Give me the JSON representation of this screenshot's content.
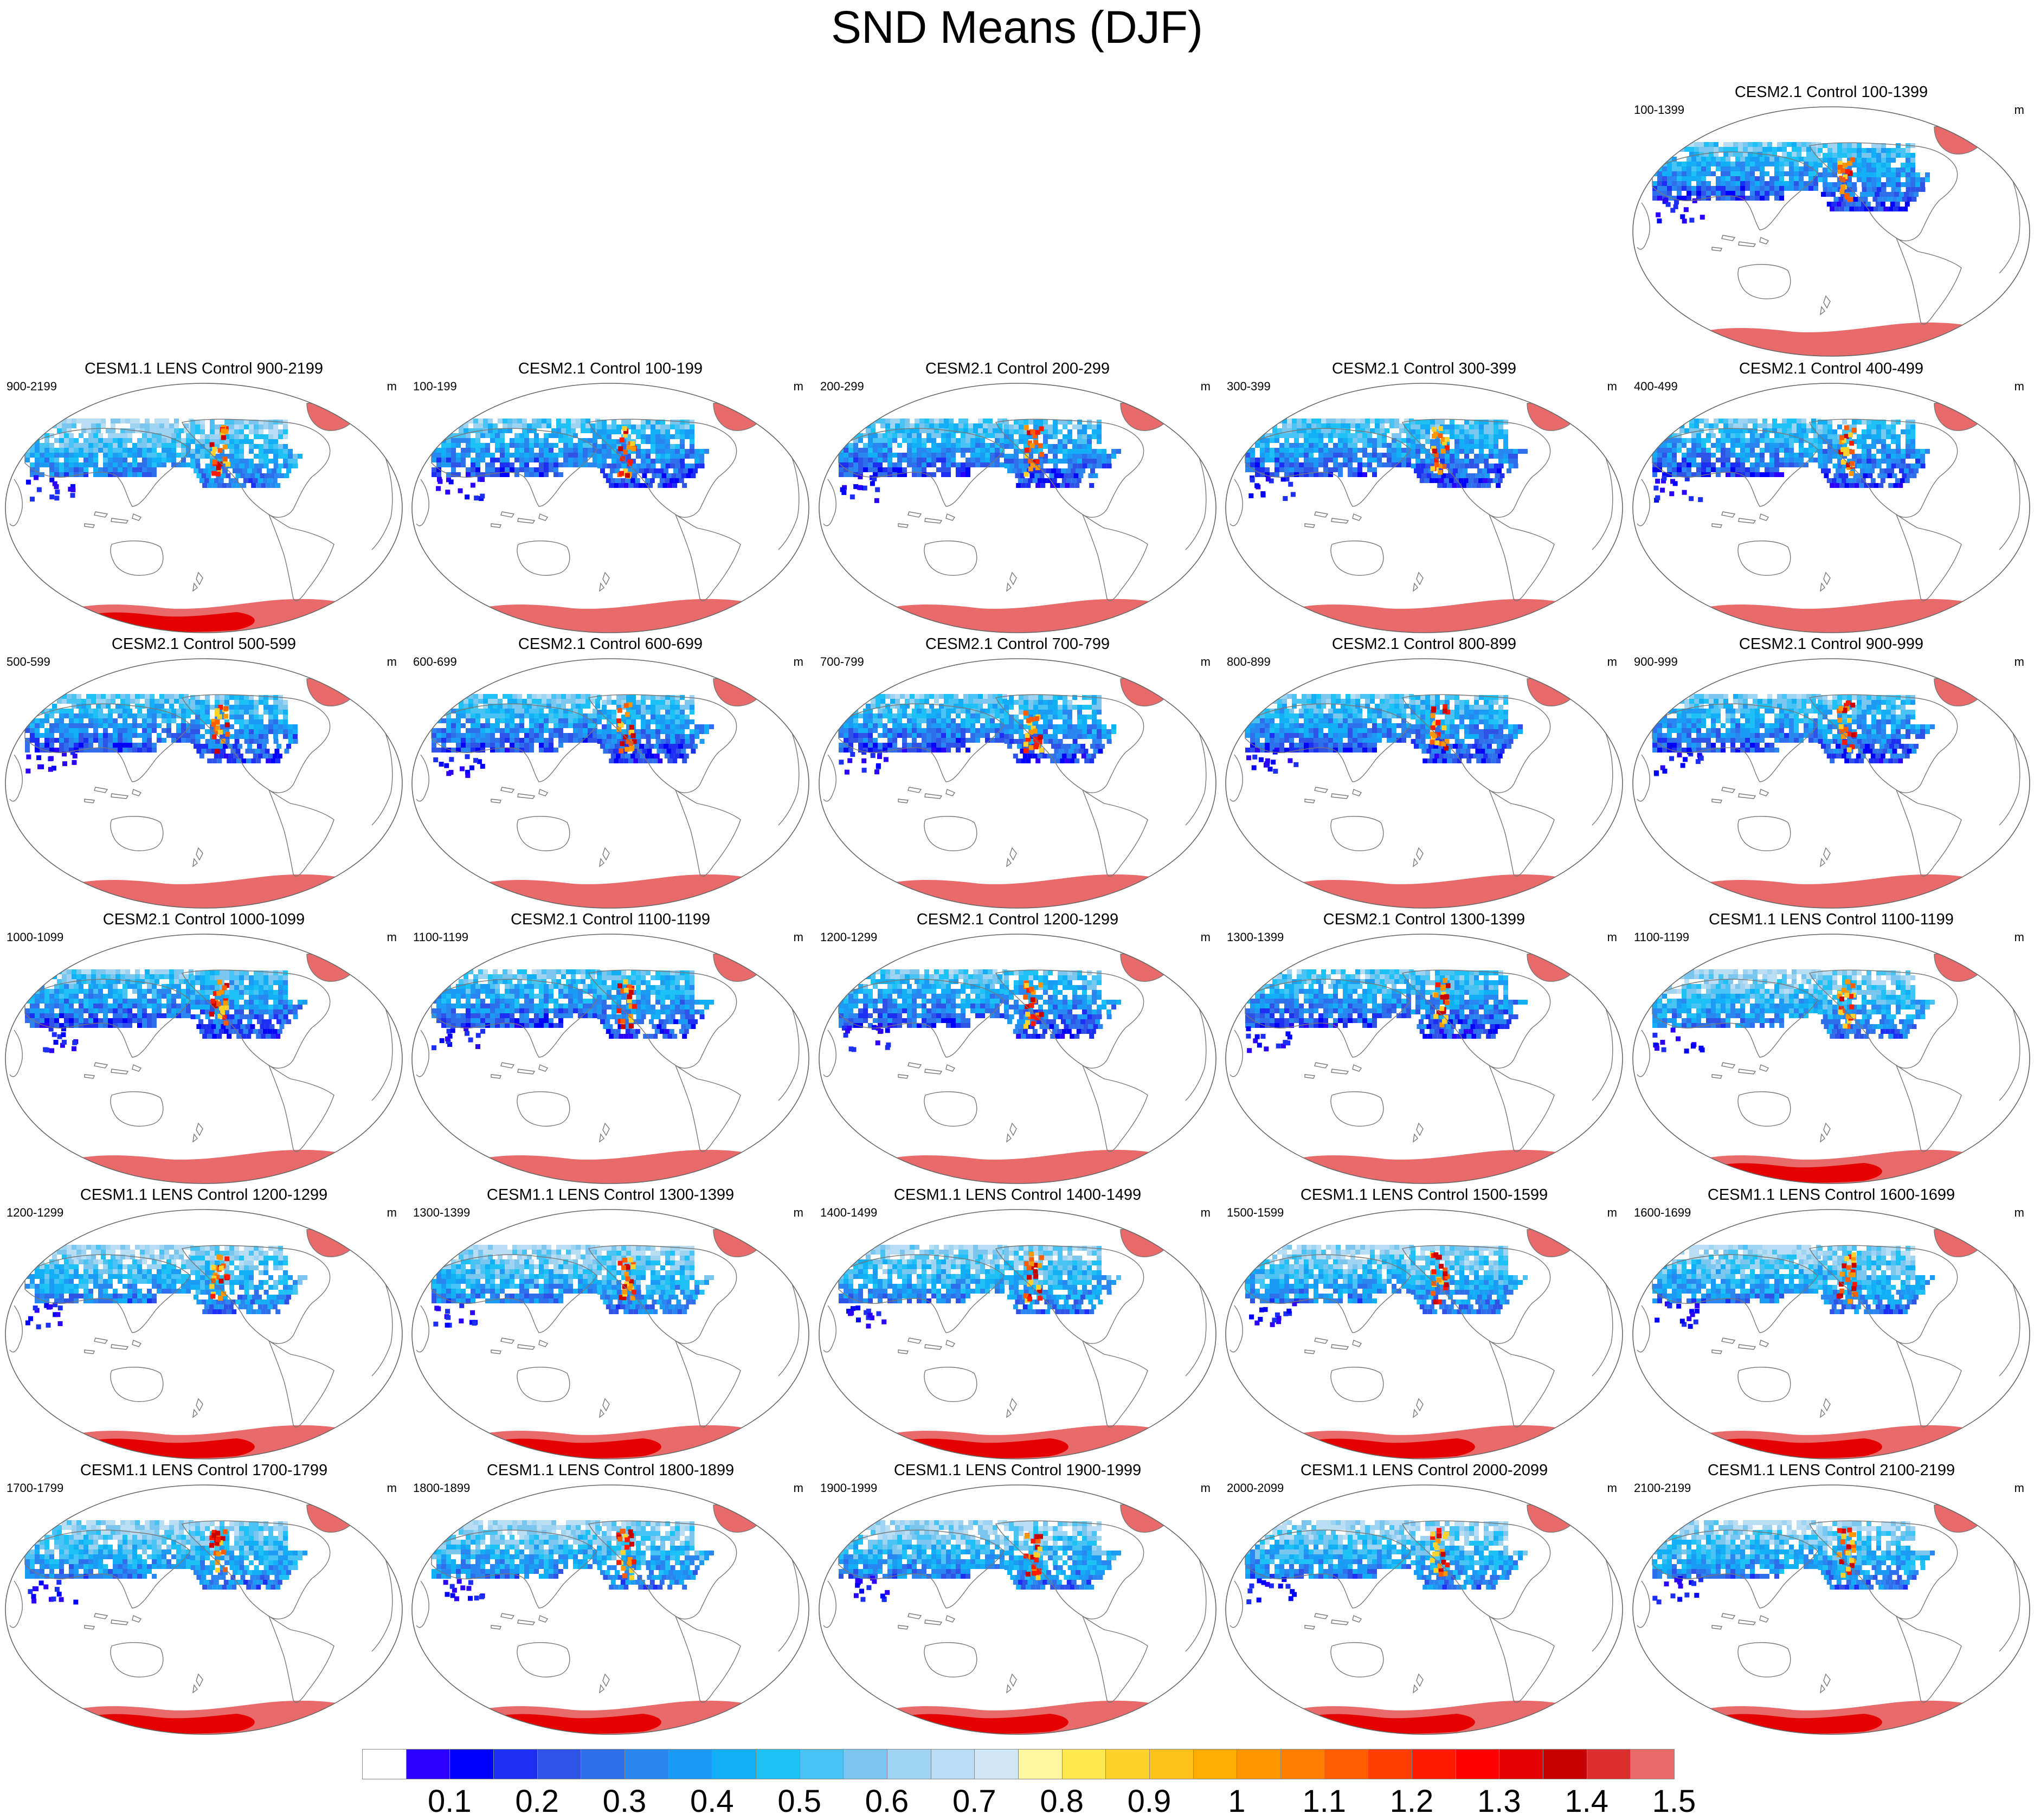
{
  "title": "SND Means (DJF)",
  "units": "m",
  "panels": [
    {
      "title": "CESM2.1 Control 100-1399",
      "range": "100-1399",
      "snow": "cesm2"
    },
    {
      "title": "CESM1.1 LENS Control 900-2199",
      "range": "900-2199",
      "snow": "lens"
    },
    {
      "title": "CESM2.1 Control 100-199",
      "range": "100-199",
      "snow": "cesm2"
    },
    {
      "title": "CESM2.1 Control 200-299",
      "range": "200-299",
      "snow": "cesm2"
    },
    {
      "title": "CESM2.1 Control 300-399",
      "range": "300-399",
      "snow": "cesm2"
    },
    {
      "title": "CESM2.1 Control 400-499",
      "range": "400-499",
      "snow": "cesm2"
    },
    {
      "title": "CESM2.1 Control 500-599",
      "range": "500-599",
      "snow": "cesm2"
    },
    {
      "title": "CESM2.1 Control 600-699",
      "range": "600-699",
      "snow": "cesm2"
    },
    {
      "title": "CESM2.1 Control 700-799",
      "range": "700-799",
      "snow": "cesm2"
    },
    {
      "title": "CESM2.1 Control 800-899",
      "range": "800-899",
      "snow": "cesm2"
    },
    {
      "title": "CESM2.1 Control 900-999",
      "range": "900-999",
      "snow": "cesm2"
    },
    {
      "title": "CESM2.1 Control 1000-1099",
      "range": "1000-1099",
      "snow": "cesm2"
    },
    {
      "title": "CESM2.1 Control 1100-1199",
      "range": "1100-1199",
      "snow": "cesm2"
    },
    {
      "title": "CESM2.1 Control 1200-1299",
      "range": "1200-1299",
      "snow": "cesm2"
    },
    {
      "title": "CESM2.1 Control 1300-1399",
      "range": "1300-1399",
      "snow": "cesm2"
    },
    {
      "title": "CESM1.1 LENS Control 1100-1199",
      "range": "1100-1199",
      "snow": "lens"
    },
    {
      "title": "CESM1.1 LENS Control 1200-1299",
      "range": "1200-1299",
      "snow": "lens"
    },
    {
      "title": "CESM1.1 LENS Control 1300-1399",
      "range": "1300-1399",
      "snow": "lens"
    },
    {
      "title": "CESM1.1 LENS Control 1400-1499",
      "range": "1400-1499",
      "snow": "lens"
    },
    {
      "title": "CESM1.1 LENS Control 1500-1599",
      "range": "1500-1599",
      "snow": "lens"
    },
    {
      "title": "CESM1.1 LENS Control 1600-1699",
      "range": "1600-1699",
      "snow": "lens"
    },
    {
      "title": "CESM1.1 LENS Control 1700-1799",
      "range": "1700-1799",
      "snow": "lens"
    },
    {
      "title": "CESM1.1 LENS Control 1800-1899",
      "range": "1800-1899",
      "snow": "lens"
    },
    {
      "title": "CESM1.1 LENS Control 1900-1999",
      "range": "1900-1999",
      "snow": "lens"
    },
    {
      "title": "CESM1.1 LENS Control 2000-2099",
      "range": "2000-2099",
      "snow": "lens"
    },
    {
      "title": "CESM1.1 LENS Control 2100-2199",
      "range": "2100-2199",
      "snow": "lens"
    }
  ],
  "colorbar": {
    "labels": [
      "0.1",
      "0.2",
      "0.3",
      "0.4",
      "0.5",
      "0.6",
      "0.7",
      "0.8",
      "0.9",
      "1",
      "1.1",
      "1.2",
      "1.3",
      "1.4",
      "1.5"
    ],
    "colors": [
      "#ffffff",
      "#2c00ff",
      "#0000ff",
      "#1c2ff2",
      "#2f53e6",
      "#2e6fec",
      "#2a86f0",
      "#1c9bf4",
      "#13aff6",
      "#1ec1f5",
      "#49c3f4",
      "#7bc6ee",
      "#9ed4f2",
      "#b9def3",
      "#cfe7f7",
      "#fff7a0",
      "#ffe94d",
      "#ffd22e",
      "#ffc21a",
      "#ffad00",
      "#ff9500",
      "#ff7d00",
      "#ff5d00",
      "#ff3d00",
      "#ff1a00",
      "#ff0000",
      "#e50000",
      "#c80000",
      "#dc2e2e",
      "#e86a6a"
    ]
  }
}
